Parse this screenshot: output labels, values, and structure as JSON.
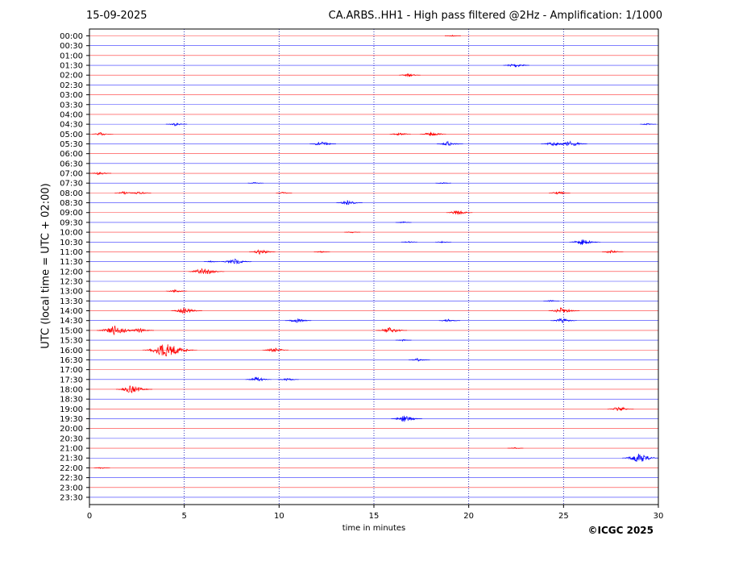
{
  "header": {
    "date": "15-09-2025",
    "title": "CA.ARBS..HH1 - High pass filtered @2Hz - Amplification: 1/1000"
  },
  "footer": {
    "copyright": "©ICGC 2025"
  },
  "chart_data": {
    "type": "line",
    "xlabel": "time in minutes",
    "ylabel": "UTC (local time = UTC + 02:00)",
    "xlim": [
      0,
      30
    ],
    "x_ticks": [
      0,
      5,
      10,
      15,
      20,
      25,
      30
    ],
    "x_tick_labels": [
      "0",
      "5",
      "10",
      "15",
      "20",
      "25",
      "30"
    ],
    "vertical_gridlines_at": [
      5,
      10,
      15,
      20,
      25
    ],
    "grid": "vertical dotted",
    "rows": [
      "00:00",
      "00:30",
      "01:00",
      "01:30",
      "02:00",
      "02:30",
      "03:00",
      "03:30",
      "04:00",
      "04:30",
      "05:00",
      "05:30",
      "06:00",
      "06:30",
      "07:00",
      "07:30",
      "08:00",
      "08:30",
      "09:00",
      "09:30",
      "10:00",
      "10:30",
      "11:00",
      "11:30",
      "12:00",
      "12:30",
      "13:00",
      "13:30",
      "14:00",
      "14:30",
      "15:00",
      "15:30",
      "16:00",
      "16:30",
      "17:00",
      "17:30",
      "18:00",
      "18:30",
      "19:00",
      "19:30",
      "20:00",
      "20:30",
      "21:00",
      "21:30",
      "22:00",
      "22:30",
      "23:00",
      "23:30"
    ],
    "row_colors": [
      "#ff0000",
      "#0000ff"
    ],
    "events": [
      {
        "row": "00:00",
        "t": 19.1,
        "amp": 1
      },
      {
        "row": "01:30",
        "t": 22.4,
        "amp": 3
      },
      {
        "row": "02:00",
        "t": 16.8,
        "amp": 2
      },
      {
        "row": "04:30",
        "t": 4.5,
        "amp": 2
      },
      {
        "row": "04:30",
        "t": 29.4,
        "amp": 1
      },
      {
        "row": "05:00",
        "t": 0.6,
        "amp": 2
      },
      {
        "row": "05:00",
        "t": 16.3,
        "amp": 2
      },
      {
        "row": "05:00",
        "t": 18.0,
        "amp": 3
      },
      {
        "row": "05:30",
        "t": 12.2,
        "amp": 3
      },
      {
        "row": "05:30",
        "t": 18.9,
        "amp": 3
      },
      {
        "row": "05:30",
        "t": 24.4,
        "amp": 3
      },
      {
        "row": "05:30",
        "t": 25.3,
        "amp": 4
      },
      {
        "row": "07:00",
        "t": 0.5,
        "amp": 2
      },
      {
        "row": "07:30",
        "t": 8.7,
        "amp": 1
      },
      {
        "row": "07:30",
        "t": 18.6,
        "amp": 1
      },
      {
        "row": "08:00",
        "t": 1.8,
        "amp": 2
      },
      {
        "row": "08:00",
        "t": 2.6,
        "amp": 2
      },
      {
        "row": "08:00",
        "t": 10.2,
        "amp": 1
      },
      {
        "row": "08:00",
        "t": 24.7,
        "amp": 2
      },
      {
        "row": "08:30",
        "t": 13.6,
        "amp": 3
      },
      {
        "row": "09:00",
        "t": 19.4,
        "amp": 3
      },
      {
        "row": "09:30",
        "t": 16.5,
        "amp": 1
      },
      {
        "row": "10:00",
        "t": 13.8,
        "amp": 1
      },
      {
        "row": "10:30",
        "t": 16.8,
        "amp": 1
      },
      {
        "row": "10:30",
        "t": 18.6,
        "amp": 1
      },
      {
        "row": "10:30",
        "t": 26.0,
        "amp": 4
      },
      {
        "row": "11:00",
        "t": 9.0,
        "amp": 3
      },
      {
        "row": "11:00",
        "t": 12.2,
        "amp": 1
      },
      {
        "row": "11:00",
        "t": 27.5,
        "amp": 2
      },
      {
        "row": "11:30",
        "t": 7.6,
        "amp": 4
      },
      {
        "row": "11:30",
        "t": 6.4,
        "amp": 1
      },
      {
        "row": "12:00",
        "t": 6.0,
        "amp": 5
      },
      {
        "row": "13:00",
        "t": 4.5,
        "amp": 2
      },
      {
        "row": "13:30",
        "t": 24.3,
        "amp": 1
      },
      {
        "row": "14:00",
        "t": 5.0,
        "amp": 4
      },
      {
        "row": "14:00",
        "t": 24.9,
        "amp": 4
      },
      {
        "row": "14:30",
        "t": 10.9,
        "amp": 3
      },
      {
        "row": "14:30",
        "t": 18.9,
        "amp": 2
      },
      {
        "row": "14:30",
        "t": 24.9,
        "amp": 3
      },
      {
        "row": "15:00",
        "t": 1.3,
        "amp": 6
      },
      {
        "row": "15:00",
        "t": 2.6,
        "amp": 3
      },
      {
        "row": "15:00",
        "t": 15.8,
        "amp": 4
      },
      {
        "row": "15:30",
        "t": 16.5,
        "amp": 1
      },
      {
        "row": "16:00",
        "t": 4.0,
        "amp": 9
      },
      {
        "row": "16:00",
        "t": 9.7,
        "amp": 3
      },
      {
        "row": "16:30",
        "t": 17.3,
        "amp": 2
      },
      {
        "row": "17:30",
        "t": 8.8,
        "amp": 3
      },
      {
        "row": "17:30",
        "t": 10.4,
        "amp": 2
      },
      {
        "row": "18:00",
        "t": 2.2,
        "amp": 5
      },
      {
        "row": "19:00",
        "t": 27.9,
        "amp": 3
      },
      {
        "row": "19:30",
        "t": 16.6,
        "amp": 4
      },
      {
        "row": "21:00",
        "t": 22.4,
        "amp": 1
      },
      {
        "row": "21:30",
        "t": 29.0,
        "amp": 6
      },
      {
        "row": "22:00",
        "t": 0.6,
        "amp": 1
      }
    ]
  }
}
